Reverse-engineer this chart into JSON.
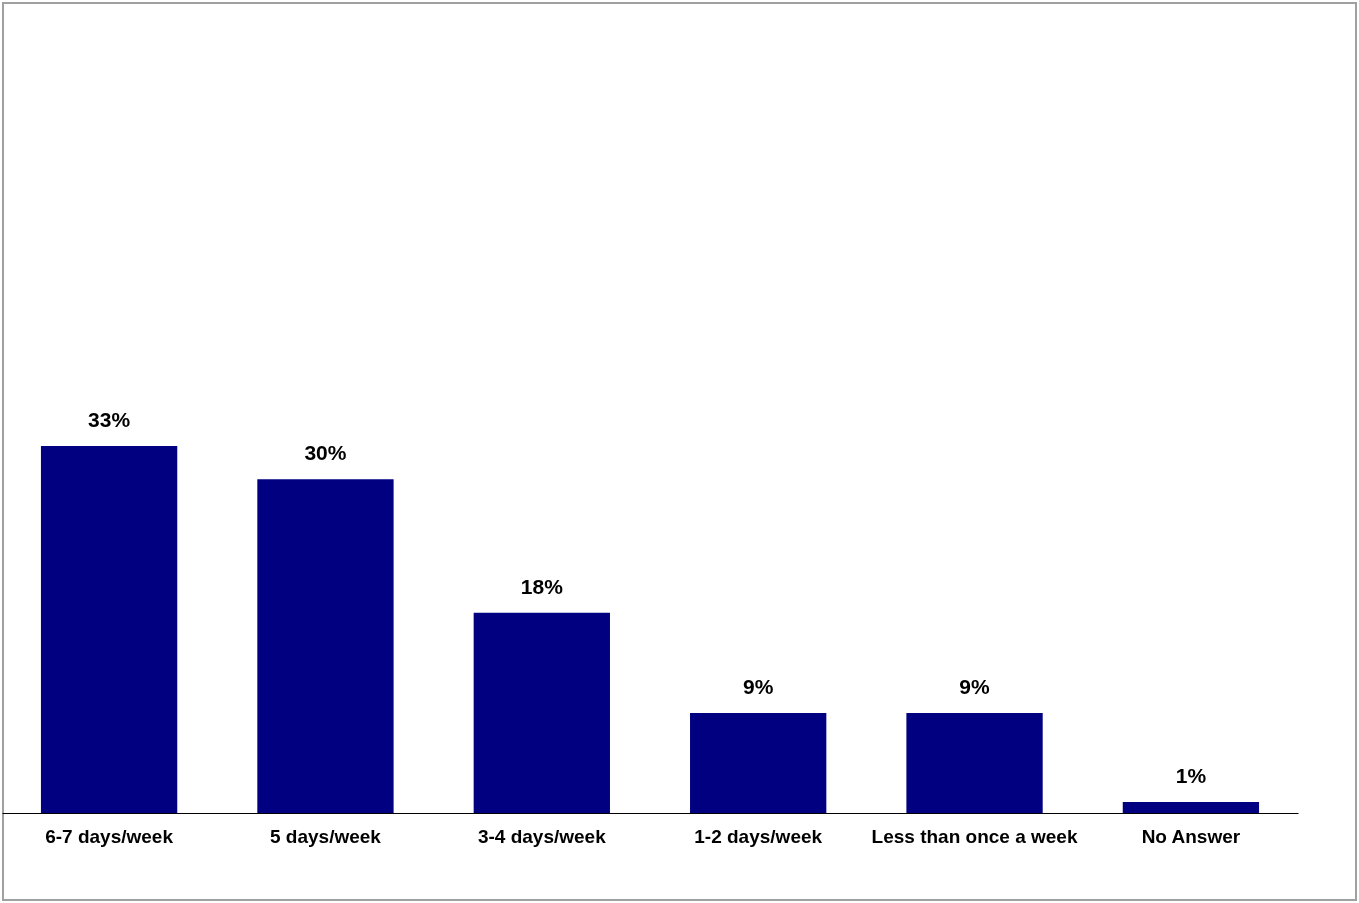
{
  "chart_data": {
    "type": "bar",
    "categories": [
      "6-7 days/week",
      "5 days/week",
      "3-4 days/week",
      "1-2 days/week",
      "Less than once a week",
      "No Answer"
    ],
    "values": [
      33,
      30,
      18,
      9,
      9,
      1
    ],
    "value_labels": [
      "33%",
      "30%",
      "18%",
      "9%",
      "9%",
      "1%"
    ],
    "color": "#000080",
    "grid": false
  }
}
